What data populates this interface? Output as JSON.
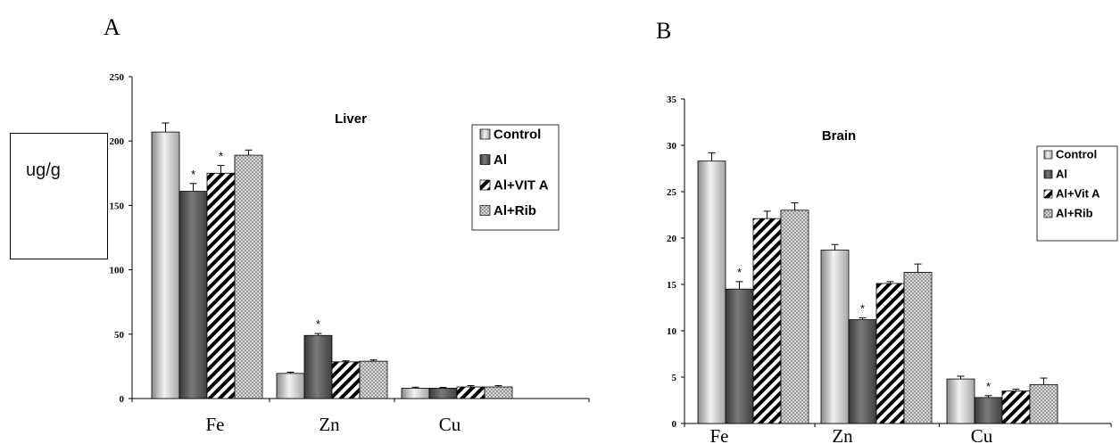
{
  "panels": {
    "a_label": "A",
    "b_label": "B"
  },
  "unit_label": "ug/g",
  "chart_data": [
    {
      "type": "bar",
      "title": "Liver",
      "categories": [
        "Fe",
        "Zn",
        "Cu"
      ],
      "ylim": [
        0,
        250
      ],
      "yticks": [
        0,
        50,
        100,
        150,
        200,
        250
      ],
      "legend_position": "right",
      "series": [
        {
          "name": "Control",
          "values": [
            207,
            19.5,
            8
          ],
          "errors": [
            7,
            1,
            0.8
          ],
          "pattern": "control",
          "sig": [
            false,
            false,
            false
          ]
        },
        {
          "name": "Al",
          "values": [
            161,
            49,
            8
          ],
          "errors": [
            6,
            1.5,
            0.6
          ],
          "pattern": "al",
          "sig": [
            true,
            true,
            false
          ]
        },
        {
          "name": "Al+VIT A",
          "values": [
            175,
            28.5,
            9
          ],
          "errors": [
            6,
            0.8,
            1
          ],
          "pattern": "vita",
          "sig": [
            true,
            false,
            false
          ]
        },
        {
          "name": "Al+Rib",
          "values": [
            189,
            29,
            9
          ],
          "errors": [
            4,
            1,
            1
          ],
          "pattern": "rib",
          "sig": [
            false,
            false,
            false
          ]
        }
      ],
      "significance_marker": "*"
    },
    {
      "type": "bar",
      "title": "Brain",
      "categories": [
        "Fe",
        "Zn",
        "Cu"
      ],
      "ylim": [
        0,
        35
      ],
      "yticks": [
        0,
        5,
        10,
        15,
        20,
        25,
        30,
        35
      ],
      "legend_position": "right",
      "series": [
        {
          "name": "Control",
          "values": [
            28.3,
            18.7,
            4.8
          ],
          "errors": [
            0.9,
            0.6,
            0.3
          ],
          "pattern": "control",
          "sig": [
            false,
            false,
            false
          ]
        },
        {
          "name": "Al",
          "values": [
            14.5,
            11.2,
            2.8
          ],
          "errors": [
            0.8,
            0.2,
            0.2
          ],
          "pattern": "al",
          "sig": [
            true,
            true,
            true
          ]
        },
        {
          "name": "Al+Vit A",
          "values": [
            22.1,
            15.1,
            3.5
          ],
          "errors": [
            0.8,
            0.2,
            0.2
          ],
          "pattern": "vita",
          "sig": [
            false,
            false,
            false
          ]
        },
        {
          "name": "Al+Rib",
          "values": [
            23.0,
            16.3,
            4.2
          ],
          "errors": [
            0.8,
            0.9,
            0.7
          ],
          "pattern": "rib",
          "sig": [
            false,
            false,
            false
          ]
        }
      ],
      "significance_marker": "*"
    }
  ]
}
